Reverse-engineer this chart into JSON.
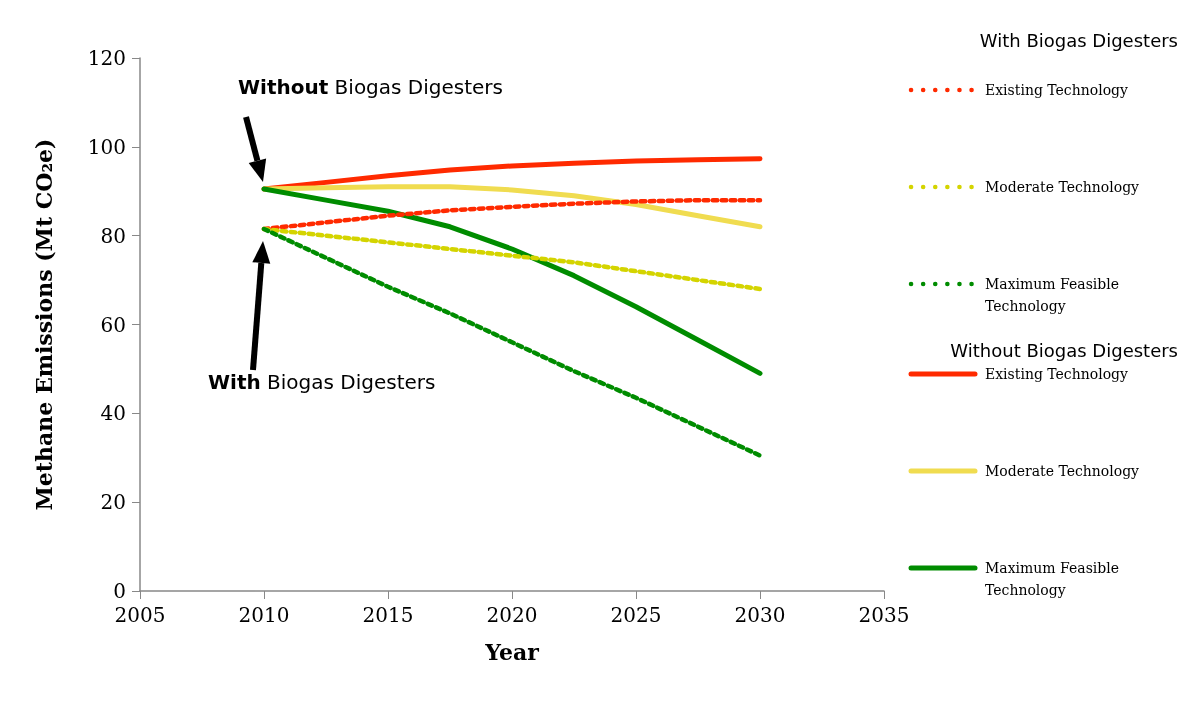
{
  "chart_data": {
    "type": "line",
    "xlabel": "Year",
    "ylabel": "Methane Emissions (Mt CO₂e)",
    "x": [
      2010,
      2012.5,
      2015,
      2017.5,
      2020,
      2022.5,
      2025,
      2027.5,
      2030
    ],
    "series": [
      {
        "name": "Existing Technology",
        "color": "#ff2a00",
        "line_style": "dotted",
        "values": [
          81.5,
          83,
          84.5,
          85.7,
          86.5,
          87.2,
          87.7,
          88,
          88
        ]
      },
      {
        "name": "Moderate Technology",
        "color": "#d4d400",
        "line_style": "dotted",
        "values": [
          81.5,
          80,
          78.5,
          77,
          75.5,
          74,
          72,
          70,
          68
        ]
      },
      {
        "name": "Maximum Feasible Technology",
        "color": "#008c00",
        "line_style": "dotted",
        "values": [
          81.5,
          75,
          68.5,
          62.5,
          56,
          49.5,
          43.5,
          37,
          30.5
        ]
      },
      {
        "name": "Existing Technology",
        "color": "#ff2a00",
        "line_style": "solid",
        "values": [
          90.5,
          92,
          93.5,
          94.8,
          95.7,
          96.3,
          96.8,
          97.1,
          97.3
        ]
      },
      {
        "name": "Moderate Technology",
        "color": "#f0dc50",
        "line_style": "solid",
        "values": [
          90.5,
          90.8,
          91,
          91,
          90.3,
          89,
          87,
          84.5,
          82
        ]
      },
      {
        "name": "Maximum Feasible Technology",
        "color": "#008c00",
        "line_style": "solid",
        "values": [
          90.5,
          88,
          85.5,
          82,
          77,
          71,
          64,
          56.5,
          49
        ]
      }
    ],
    "xlim": [
      2005,
      2035
    ],
    "xticks": [
      2005,
      2010,
      2015,
      2020,
      2025,
      2030,
      2035
    ],
    "ylim": [
      0,
      120
    ],
    "yticks": [
      0,
      20,
      40,
      60,
      80,
      100,
      120
    ],
    "grid": false,
    "marker": "none",
    "legend": "right",
    "annotations": [
      "With Biogas Digesters",
      "Without Biogas Digesters",
      "With Biogas Digesters",
      "Without Biogas Digesters"
    ]
  }
}
